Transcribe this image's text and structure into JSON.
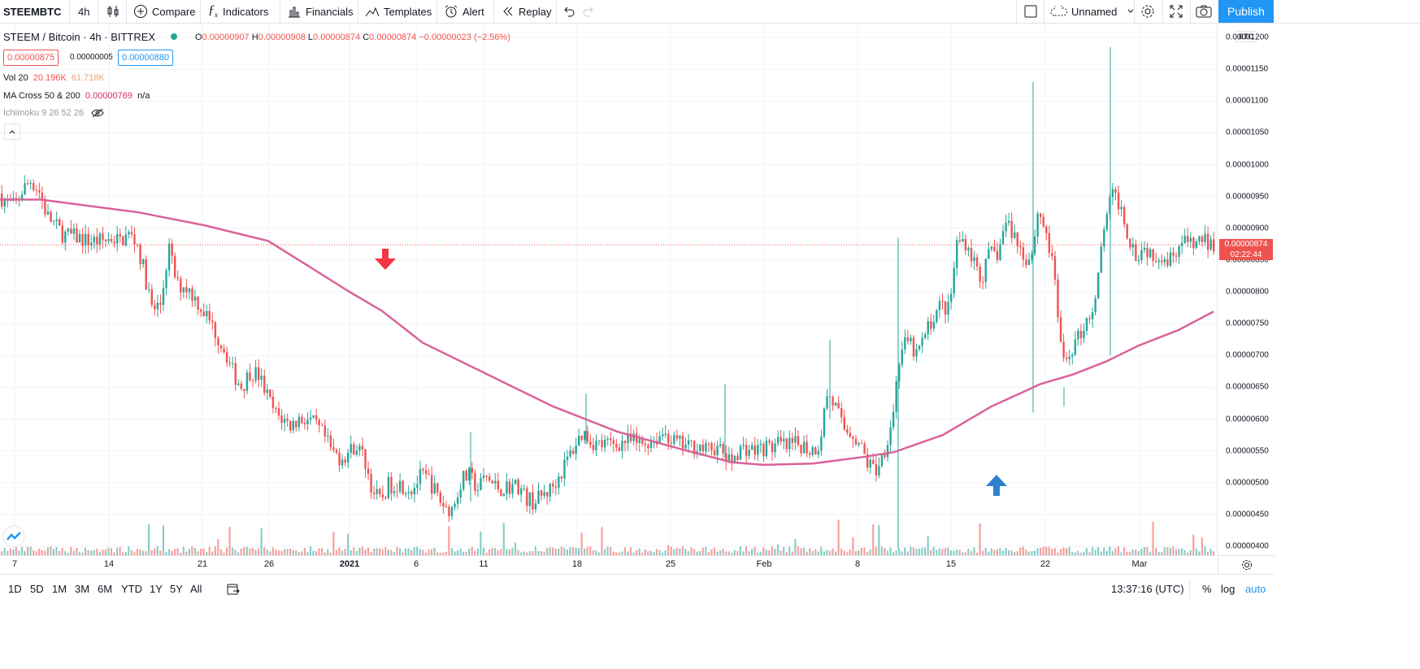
{
  "toolbar": {
    "symbol": "STEEMBTC",
    "interval": "4h",
    "compare": "Compare",
    "indicators": "Indicators",
    "financials": "Financials",
    "templates": "Templates",
    "alert": "Alert",
    "replay": "Replay",
    "layout_name": "Unnamed",
    "publish": "Publish"
  },
  "legend": {
    "title": "STEEM / Bitcoin · 4h · BITTREX",
    "o_label": "O",
    "o_value": "0.00000907",
    "h_label": "H",
    "h_value": "0.00000908",
    "l_label": "L",
    "l_value": "0.00000874",
    "c_label": "C",
    "c_value": "0.00000874",
    "change": "−0.00000023 (−2.56%)",
    "sell_price": "0.00000875",
    "spread": "0.00000005",
    "buy_price": "0.00000880",
    "vol_label": "Vol 20",
    "vol_value1": "20.196K",
    "vol_value2": "61.718K",
    "ma_label": "MA Cross 50 & 200",
    "ma_value": "0.00000769",
    "ma_na": "n/a",
    "ichimoku_label": "Ichimoku 9 26 52 26"
  },
  "price_axis": {
    "currency": "BTC",
    "labels": [
      "0.00001200",
      "0.00001150",
      "0.00001100",
      "0.00001050",
      "0.00001000",
      "0.00000950",
      "0.00000900",
      "0.00000850",
      "0.00000800",
      "0.00000750",
      "0.00000700",
      "0.00000650",
      "0.00000600",
      "0.00000550",
      "0.00000500",
      "0.00000450",
      "0.00000400"
    ],
    "last_price": "0.00000874",
    "countdown": "02:22:44"
  },
  "date_axis": [
    "7",
    "14",
    "21",
    "26",
    "2021",
    "6",
    "11",
    "18",
    "25",
    "Feb",
    "8",
    "15",
    "22",
    "Mar"
  ],
  "bottom": {
    "ranges": [
      "1D",
      "5D",
      "1M",
      "3M",
      "6M",
      "YTD",
      "1Y",
      "5Y",
      "All"
    ],
    "time": "13:37:16 (UTC)",
    "percent": "%",
    "log": "log",
    "auto": "auto"
  },
  "colors": {
    "up": "#26a69a",
    "down": "#ef5350",
    "ma": "#d9639a",
    "accent": "#2196f3",
    "sell_arrow": "#f23645",
    "buy_arrow": "#2f80d1"
  },
  "chart_data": {
    "type": "candlestick",
    "ylim": [
      3.9e-06,
      1.22e-05
    ],
    "close_path": [
      [
        0,
        955
      ],
      [
        10,
        940
      ],
      [
        20,
        935
      ],
      [
        30,
        960
      ],
      [
        40,
        975
      ],
      [
        50,
        960
      ],
      [
        60,
        920
      ],
      [
        70,
        905
      ],
      [
        80,
        890
      ],
      [
        100,
        885
      ],
      [
        110,
        880
      ],
      [
        120,
        880
      ],
      [
        130,
        880
      ],
      [
        140,
        885
      ],
      [
        150,
        880
      ],
      [
        160,
        890
      ],
      [
        170,
        880
      ],
      [
        180,
        830
      ],
      [
        190,
        770
      ],
      [
        200,
        780
      ],
      [
        210,
        870
      ],
      [
        220,
        810
      ],
      [
        230,
        810
      ],
      [
        240,
        795
      ],
      [
        250,
        775
      ],
      [
        260,
        755
      ],
      [
        270,
        730
      ],
      [
        280,
        705
      ],
      [
        290,
        670
      ],
      [
        300,
        650
      ],
      [
        310,
        675
      ],
      [
        320,
        670
      ],
      [
        330,
        640
      ],
      [
        340,
        610
      ],
      [
        350,
        600
      ],
      [
        360,
        590
      ],
      [
        370,
        600
      ],
      [
        380,
        600
      ],
      [
        390,
        590
      ],
      [
        400,
        575
      ],
      [
        410,
        550
      ],
      [
        420,
        540
      ],
      [
        430,
        545
      ],
      [
        440,
        560
      ],
      [
        450,
        540
      ],
      [
        460,
        490
      ],
      [
        470,
        470
      ],
      [
        480,
        495
      ],
      [
        490,
        500
      ],
      [
        500,
        495
      ],
      [
        510,
        490
      ],
      [
        520,
        510
      ],
      [
        530,
        505
      ],
      [
        540,
        480
      ],
      [
        550,
        460
      ],
      [
        560,
        460
      ],
      [
        570,
        505
      ],
      [
        580,
        510
      ],
      [
        590,
        490
      ],
      [
        600,
        510
      ],
      [
        610,
        495
      ],
      [
        620,
        490
      ],
      [
        630,
        495
      ],
      [
        640,
        495
      ],
      [
        650,
        475
      ],
      [
        660,
        470
      ],
      [
        670,
        480
      ],
      [
        680,
        490
      ],
      [
        690,
        510
      ],
      [
        700,
        535
      ],
      [
        710,
        560
      ],
      [
        720,
        580
      ],
      [
        730,
        565
      ],
      [
        740,
        560
      ],
      [
        750,
        560
      ],
      [
        760,
        560
      ],
      [
        770,
        565
      ],
      [
        780,
        565
      ],
      [
        790,
        560
      ],
      [
        800,
        565
      ],
      [
        810,
        570
      ],
      [
        820,
        580
      ],
      [
        830,
        565
      ],
      [
        840,
        560
      ],
      [
        850,
        555
      ],
      [
        860,
        560
      ],
      [
        870,
        550
      ],
      [
        880,
        555
      ],
      [
        890,
        550
      ],
      [
        900,
        530
      ],
      [
        910,
        550
      ],
      [
        920,
        555
      ],
      [
        930,
        550
      ],
      [
        940,
        555
      ],
      [
        950,
        555
      ],
      [
        960,
        560
      ],
      [
        970,
        555
      ],
      [
        980,
        560
      ],
      [
        990,
        560
      ],
      [
        1000,
        550
      ],
      [
        1010,
        560
      ],
      [
        1020,
        640
      ],
      [
        1030,
        620
      ],
      [
        1040,
        585
      ],
      [
        1050,
        580
      ],
      [
        1060,
        560
      ],
      [
        1070,
        530
      ],
      [
        1080,
        520
      ],
      [
        1090,
        550
      ],
      [
        1100,
        600
      ],
      [
        1110,
        710
      ],
      [
        1120,
        720
      ],
      [
        1130,
        700
      ],
      [
        1140,
        730
      ],
      [
        1150,
        760
      ],
      [
        1160,
        780
      ],
      [
        1170,
        770
      ],
      [
        1180,
        880
      ],
      [
        1190,
        880
      ],
      [
        1200,
        850
      ],
      [
        1210,
        820
      ],
      [
        1220,
        860
      ],
      [
        1230,
        860
      ],
      [
        1240,
        910
      ],
      [
        1250,
        890
      ],
      [
        1260,
        860
      ],
      [
        1270,
        850
      ],
      [
        1280,
        930
      ],
      [
        1290,
        890
      ],
      [
        1300,
        820
      ],
      [
        1310,
        680
      ],
      [
        1320,
        710
      ],
      [
        1330,
        730
      ],
      [
        1340,
        760
      ],
      [
        1350,
        780
      ],
      [
        1360,
        900
      ],
      [
        1370,
        950
      ],
      [
        1380,
        940
      ],
      [
        1390,
        890
      ],
      [
        1400,
        860
      ],
      [
        1410,
        870
      ],
      [
        1420,
        860
      ],
      [
        1430,
        860
      ],
      [
        1440,
        850
      ],
      [
        1450,
        870
      ],
      [
        1460,
        880
      ],
      [
        1470,
        870
      ],
      [
        1480,
        885
      ],
      [
        1490,
        874
      ]
    ],
    "ma200_path": [
      [
        0,
        945
      ],
      [
        50,
        945
      ],
      [
        110,
        935
      ],
      [
        170,
        925
      ],
      [
        250,
        905
      ],
      [
        330,
        880
      ],
      [
        380,
        840
      ],
      [
        430,
        800
      ],
      [
        470,
        770
      ],
      [
        520,
        720
      ],
      [
        600,
        670
      ],
      [
        680,
        620
      ],
      [
        760,
        580
      ],
      [
        840,
        552
      ],
      [
        900,
        532
      ],
      [
        940,
        528
      ],
      [
        1000,
        530
      ],
      [
        1060,
        540
      ],
      [
        1100,
        548
      ],
      [
        1160,
        575
      ],
      [
        1220,
        620
      ],
      [
        1280,
        655
      ],
      [
        1320,
        670
      ],
      [
        1360,
        690
      ],
      [
        1400,
        715
      ],
      [
        1450,
        740
      ],
      [
        1493,
        769
      ]
    ],
    "price_unit_note": "path y values in units of 1e-8 BTC"
  }
}
